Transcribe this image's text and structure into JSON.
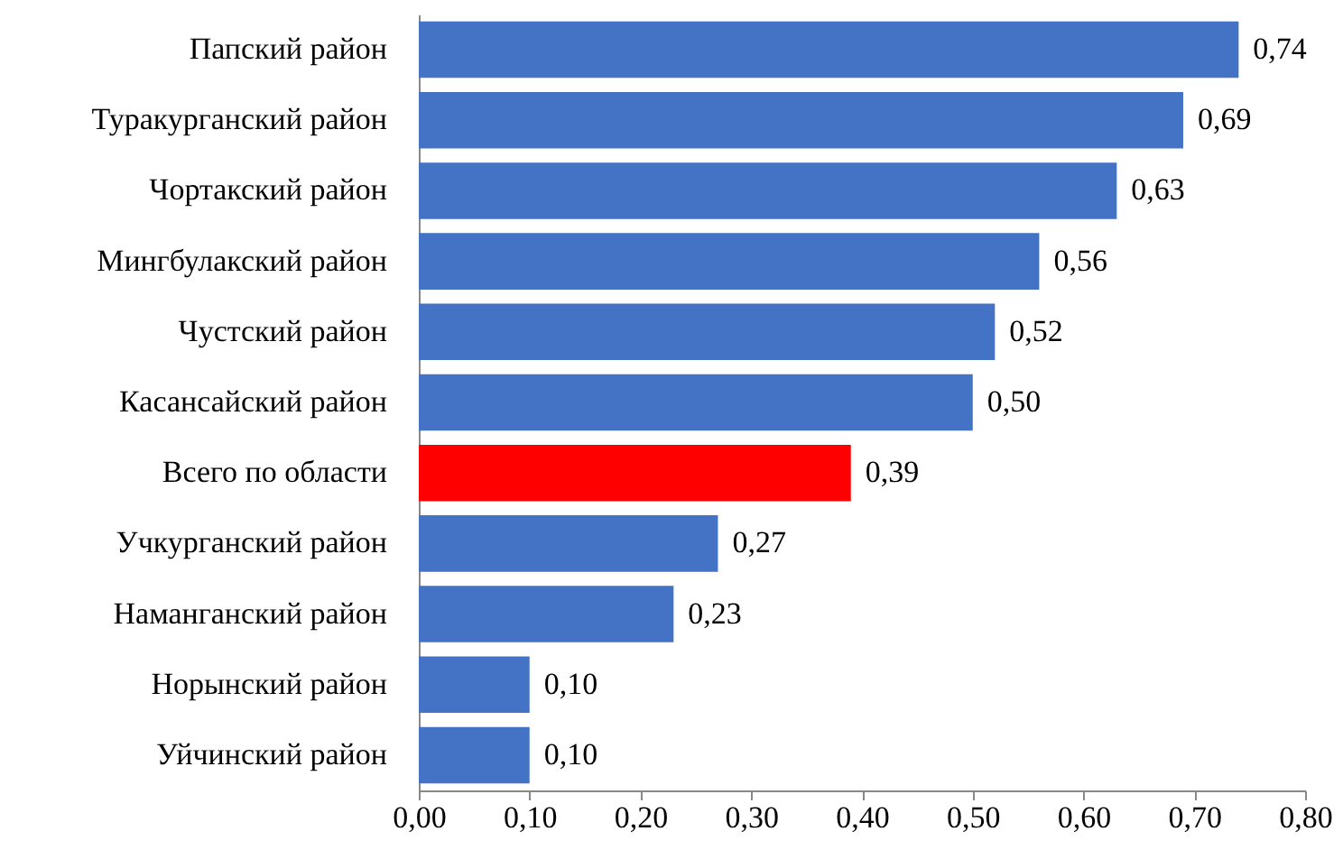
{
  "chart_data": {
    "type": "bar",
    "orientation": "horizontal",
    "categories": [
      "Папский район",
      "Туракурганский район",
      "Чортакский район",
      "Мингбулакский район",
      "Чустский район",
      "Касансайский район",
      "Всего по области",
      "Учкурганский район",
      "Наманганский район",
      "Норынский район",
      "Уйчинский район"
    ],
    "values": [
      0.74,
      0.69,
      0.63,
      0.56,
      0.52,
      0.5,
      0.39,
      0.27,
      0.23,
      0.1,
      0.1
    ],
    "colors": [
      "#4472c4",
      "#4472c4",
      "#4472c4",
      "#4472c4",
      "#4472c4",
      "#4472c4",
      "#ff0000",
      "#4472c4",
      "#4472c4",
      "#4472c4",
      "#4472c4"
    ],
    "value_labels": [
      "0,74",
      "0,69",
      "0,63",
      "0,56",
      "0,52",
      "0,50",
      "0,39",
      "0,27",
      "0,23",
      "0,10",
      "0,10"
    ],
    "xlim": [
      0,
      0.8
    ],
    "xticks": [
      {
        "value": 0,
        "label": "0,00"
      },
      {
        "value": 0.1,
        "label": "0,10"
      },
      {
        "value": 0.2,
        "label": "0,20"
      },
      {
        "value": 0.3,
        "label": "0,30"
      },
      {
        "value": 0.4,
        "label": "0,40"
      },
      {
        "value": 0.5,
        "label": "0,50"
      },
      {
        "value": 0.6,
        "label": "0,60"
      },
      {
        "value": 0.7,
        "label": "0,70"
      },
      {
        "value": 0.8,
        "label": "0,80"
      }
    ],
    "grid": false
  }
}
